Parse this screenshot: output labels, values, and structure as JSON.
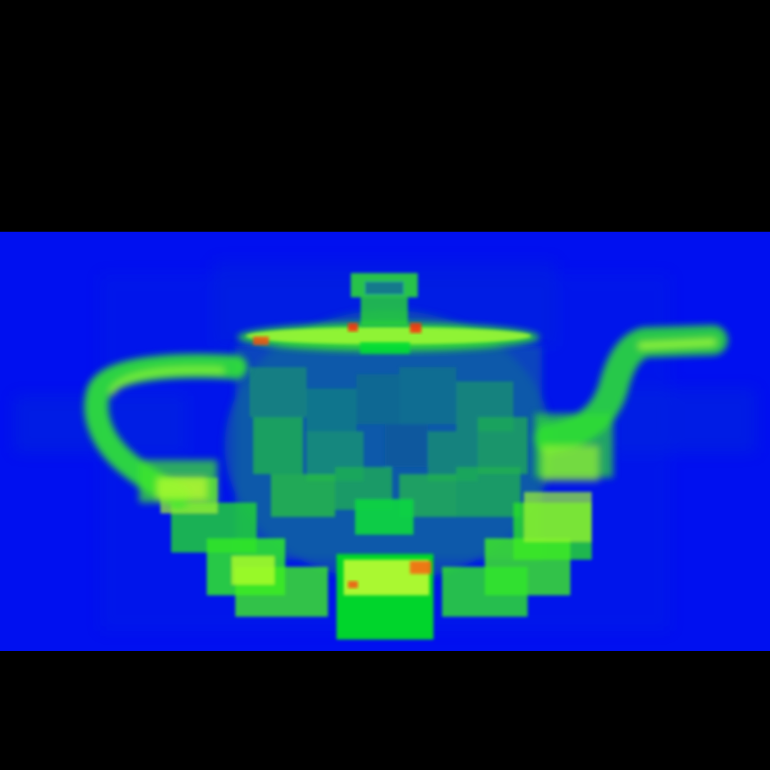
{
  "scene": {
    "subject": "teapot-bvh-heatmap",
    "colors": {
      "letterbox": "#000000",
      "background": "#0010f0",
      "low": "#0a50b4",
      "mid": "#00ee22",
      "high": "#b8ff28",
      "hot": "#ff2200"
    }
  }
}
